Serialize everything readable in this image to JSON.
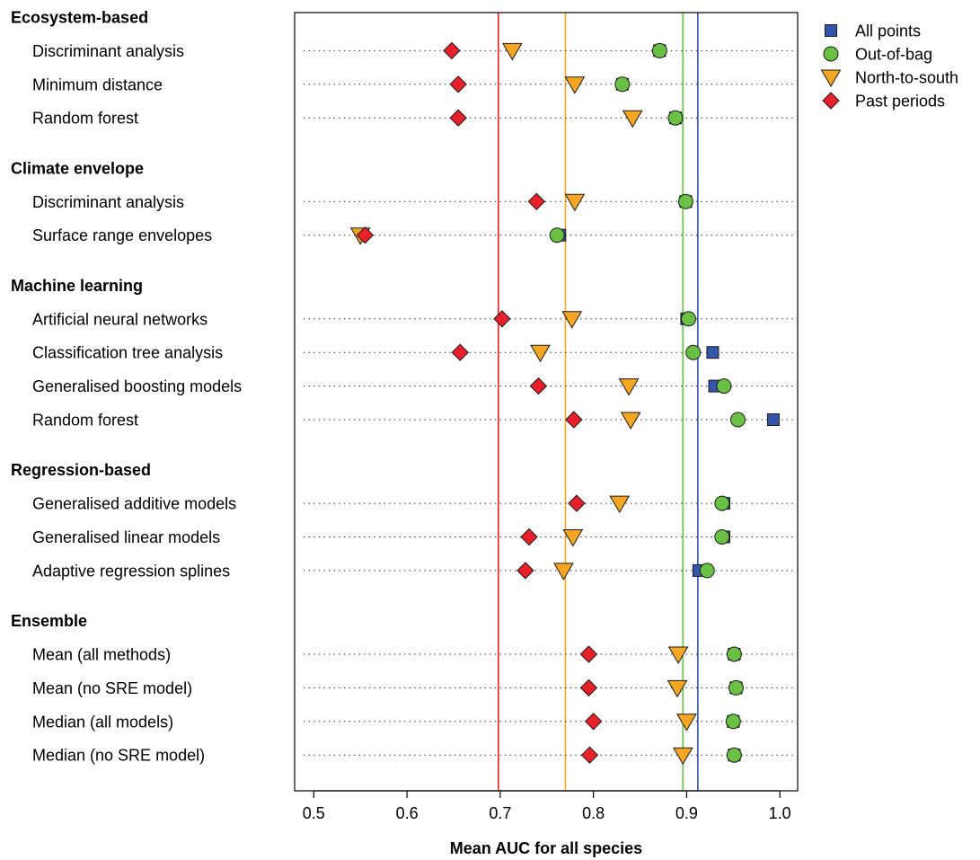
{
  "chart_data": {
    "type": "scatter",
    "title": "",
    "xlabel": "Mean AUC for all species",
    "ylabel": "",
    "xlim": [
      0.48,
      1.02
    ],
    "xticks": [
      "0.5",
      "0.6",
      "0.7",
      "0.8",
      "0.9",
      "1.0"
    ],
    "grid": "dotted row guides",
    "legend_position": "top-right, outside plot",
    "series": [
      {
        "name": "All points",
        "key": "all",
        "marker": "square",
        "color": "#3355aa"
      },
      {
        "name": "Out-of-bag",
        "key": "oob",
        "marker": "circle",
        "color": "#6abf45"
      },
      {
        "name": "North-to-south",
        "key": "ns",
        "marker": "triangle-down",
        "color": "#f5a623"
      },
      {
        "name": "Past periods",
        "key": "past",
        "marker": "diamond",
        "color": "#e8202a"
      }
    ],
    "reference_lines": [
      {
        "series": "Past periods",
        "x": 0.698,
        "color": "#e8202a"
      },
      {
        "series": "North-to-south",
        "x": 0.77,
        "color": "#f5a623"
      },
      {
        "series": "Out-of-bag",
        "x": 0.896,
        "color": "#6abf45"
      },
      {
        "series": "All points",
        "x": 0.912,
        "color": "#3355aa"
      }
    ],
    "groups": [
      {
        "name": "Ecosystem-based",
        "methods": [
          {
            "label": "Discriminant analysis",
            "all": 0.871,
            "oob": 0.871,
            "ns": 0.713,
            "past": 0.648
          },
          {
            "label": "Minimum distance",
            "all": 0.831,
            "oob": 0.831,
            "ns": 0.78,
            "past": 0.655
          },
          {
            "label": "Random forest",
            "all": 0.888,
            "oob": 0.888,
            "ns": 0.842,
            "past": 0.655
          }
        ]
      },
      {
        "name": "Climate envelope",
        "methods": [
          {
            "label": "Discriminant analysis",
            "all": 0.899,
            "oob": 0.899,
            "ns": 0.78,
            "past": 0.739
          },
          {
            "label": "Surface range envelopes",
            "all": 0.764,
            "oob": 0.761,
            "ns": 0.55,
            "past": 0.555
          }
        ]
      },
      {
        "name": "Machine learning",
        "methods": [
          {
            "label": "Artificial neural networks",
            "all": 0.9,
            "oob": 0.902,
            "ns": 0.777,
            "past": 0.702
          },
          {
            "label": "Classification tree analysis",
            "all": 0.928,
            "oob": 0.907,
            "ns": 0.743,
            "past": 0.657
          },
          {
            "label": "Generalised boosting models",
            "all": 0.93,
            "oob": 0.94,
            "ns": 0.838,
            "past": 0.741
          },
          {
            "label": "Random forest",
            "all": 0.993,
            "oob": 0.955,
            "ns": 0.84,
            "past": 0.779
          }
        ]
      },
      {
        "name": "Regression-based",
        "methods": [
          {
            "label": "Generalised additive models",
            "all": 0.94,
            "oob": 0.938,
            "ns": 0.828,
            "past": 0.782
          },
          {
            "label": "Generalised linear models",
            "all": 0.94,
            "oob": 0.938,
            "ns": 0.778,
            "past": 0.731
          },
          {
            "label": "Adaptive regression splines",
            "all": 0.913,
            "oob": 0.922,
            "ns": 0.768,
            "past": 0.727
          }
        ]
      },
      {
        "name": "Ensemble",
        "methods": [
          {
            "label": "Mean (all methods)",
            "all": 0.951,
            "oob": 0.951,
            "ns": 0.891,
            "past": 0.795
          },
          {
            "label": "Mean (no SRE model)",
            "all": 0.953,
            "oob": 0.953,
            "ns": 0.89,
            "past": 0.795
          },
          {
            "label": "Median (all models)",
            "all": 0.95,
            "oob": 0.95,
            "ns": 0.9,
            "past": 0.8
          },
          {
            "label": "Median (no SRE model)",
            "all": 0.951,
            "oob": 0.951,
            "ns": 0.896,
            "past": 0.796
          }
        ]
      }
    ]
  }
}
